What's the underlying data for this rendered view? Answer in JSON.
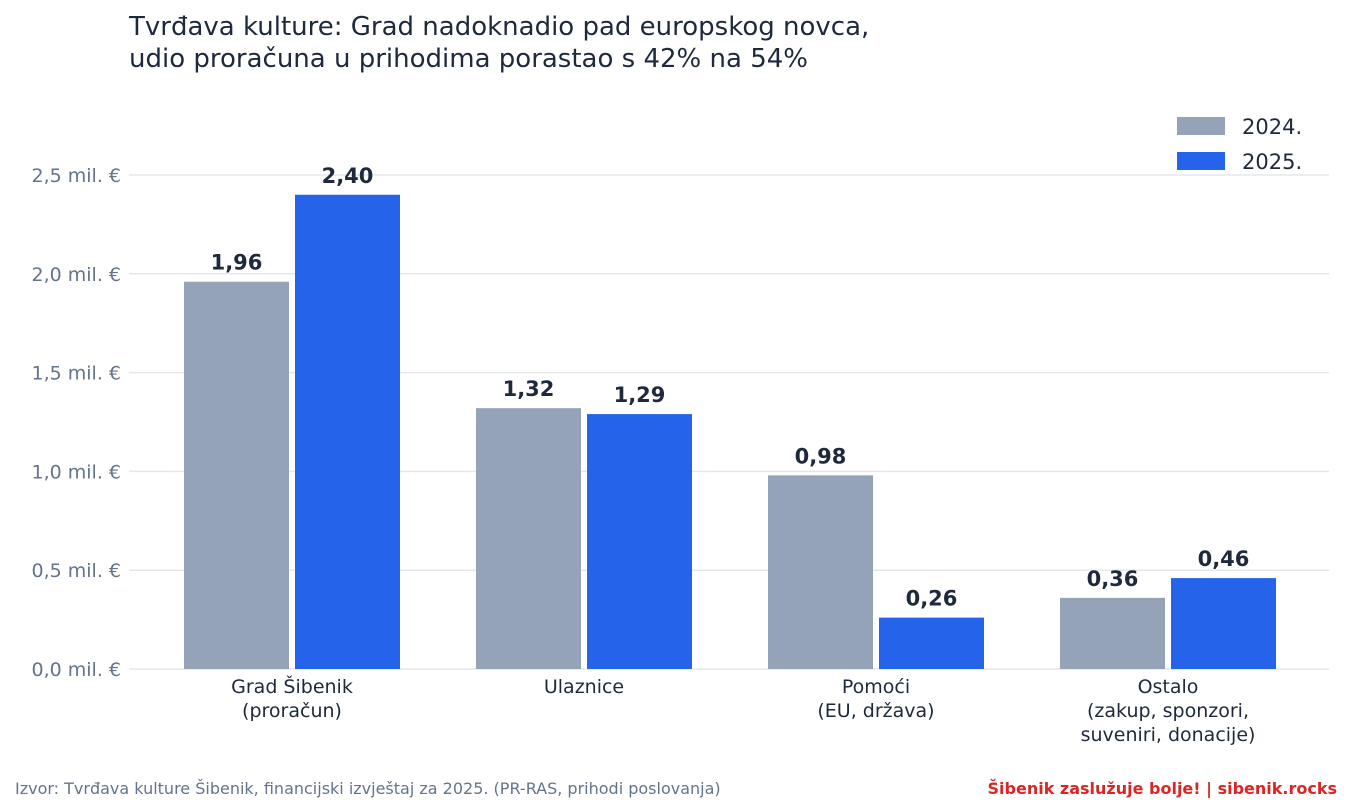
{
  "chart_data": {
    "type": "bar",
    "title_lines": [
      "Tvrđava kulture: Grad nadoknadio pad europskog novca,",
      "udio proračuna u prihodima porastao s 42% na 54%"
    ],
    "categories": [
      [
        "Grad Šibenik",
        "(proračun)"
      ],
      [
        "Ulaznice"
      ],
      [
        "Pomoći",
        "(EU, država)"
      ],
      [
        "Ostalo",
        "(zakup, sponzori,",
        "suveniri, donacije)"
      ]
    ],
    "series": [
      {
        "name": "2024.",
        "color": "#94a3b8",
        "values": [
          1.96,
          1.32,
          0.98,
          0.36
        ],
        "labels": [
          "1,96",
          "1,32",
          "0,98",
          "0,36"
        ]
      },
      {
        "name": "2025.",
        "color": "#2563eb",
        "values": [
          2.4,
          1.29,
          0.26,
          0.46
        ],
        "labels": [
          "2,40",
          "1,29",
          "0,26",
          "0,46"
        ]
      }
    ],
    "yticks": [
      {
        "value": 0.0,
        "label": "0,0 mil. €"
      },
      {
        "value": 0.5,
        "label": "0,5 mil. €"
      },
      {
        "value": 1.0,
        "label": "1,0 mil. €"
      },
      {
        "value": 1.5,
        "label": "1,5 mil. €"
      },
      {
        "value": 2.0,
        "label": "2,0 mil. €"
      },
      {
        "value": 2.5,
        "label": "2,5 mil. €"
      }
    ],
    "ylim": [
      0,
      2.5
    ],
    "grid": true,
    "legend_position": "top-right"
  },
  "footer": {
    "source": "Izvor: Tvrđava kulture Šibenik, financijski izvještaj za 2025. (PR-RAS, prihodi poslovanja)",
    "branding": "Šibenik zaslužuje bolje!  |  sibenik.rocks"
  }
}
